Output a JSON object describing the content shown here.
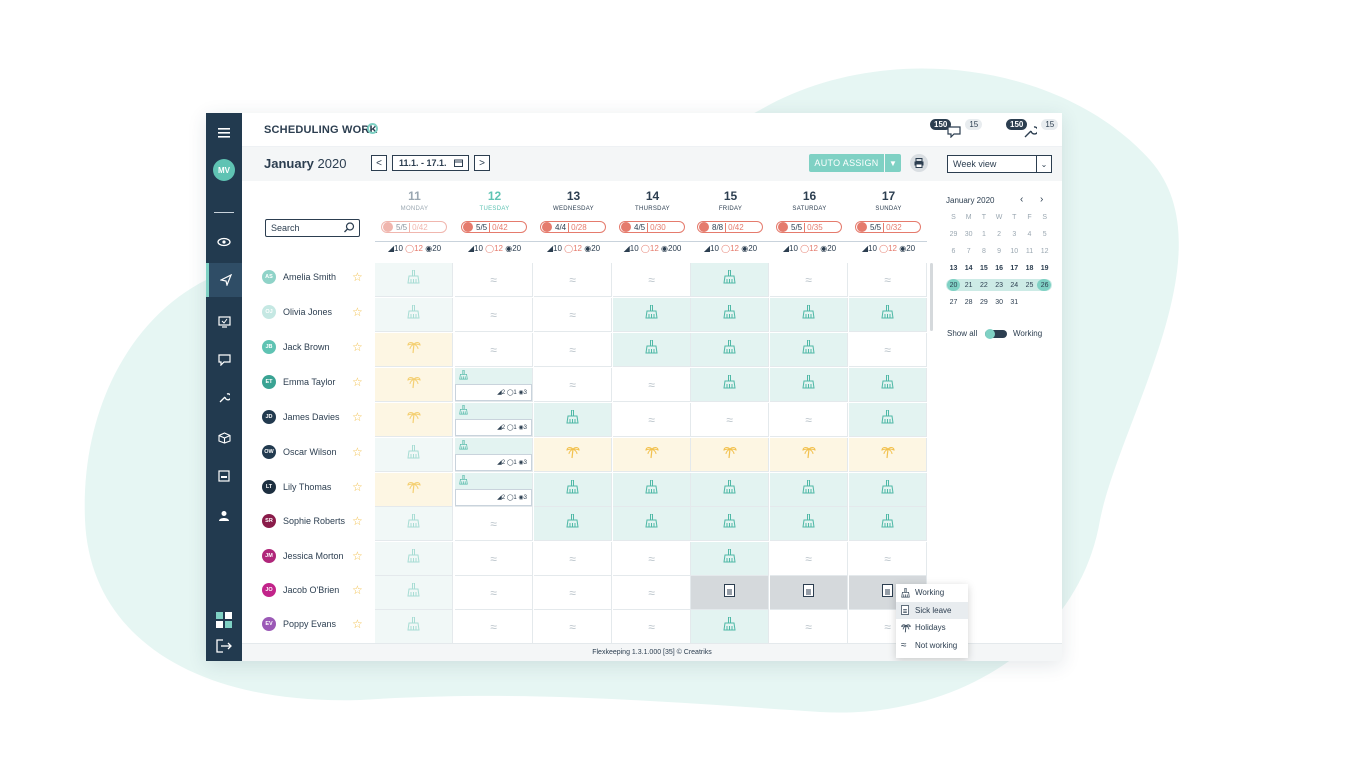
{
  "header": {
    "title": "SCHEDULING WORK",
    "badge1": {
      "dark": "150",
      "light": "15"
    },
    "badge2": {
      "dark": "150",
      "light": "15"
    }
  },
  "sidebar": {
    "avatar": "MV"
  },
  "toolbar": {
    "month": "January",
    "year": "2020",
    "prev": "<",
    "next": ">",
    "range": "11.1. - 17.1.",
    "auto_assign": "AUTO ASSIGN",
    "view": "Week view"
  },
  "search": {
    "placeholder": "Search"
  },
  "days": [
    {
      "num": "11",
      "name": "MONDAY",
      "state": "past",
      "p1": "5/5",
      "p2": "0/42",
      "s1": "10",
      "s2": "12",
      "s3": "20"
    },
    {
      "num": "12",
      "name": "TUESDAY",
      "state": "today",
      "p1": "5/5",
      "p2": "0/42",
      "s1": "10",
      "s2": "12",
      "s3": "20"
    },
    {
      "num": "13",
      "name": "WEDNESDAY",
      "state": "future",
      "p1": "4/4",
      "p2": "0/28",
      "s1": "10",
      "s2": "12",
      "s3": "20"
    },
    {
      "num": "14",
      "name": "THURSDAY",
      "state": "future",
      "p1": "4/5",
      "p2": "0/30",
      "s1": "10",
      "s2": "12",
      "s3": "200"
    },
    {
      "num": "15",
      "name": "FRIDAY",
      "state": "future",
      "p1": "8/8",
      "p2": "0/42",
      "s1": "10",
      "s2": "12",
      "s3": "20"
    },
    {
      "num": "16",
      "name": "SATURDAY",
      "state": "future",
      "p1": "5/5",
      "p2": "0/35",
      "s1": "10",
      "s2": "12",
      "s3": "20"
    },
    {
      "num": "17",
      "name": "SUNDAY",
      "state": "future",
      "p1": "5/5",
      "p2": "0/32",
      "s1": "10",
      "s2": "12",
      "s3": "20"
    }
  ],
  "employees": [
    {
      "initials": "AS",
      "name": "Amelia Smith",
      "color": "#8fd3c8",
      "cells": [
        "workp",
        "off",
        "off",
        "off",
        "work",
        "off",
        "off"
      ]
    },
    {
      "initials": "OJ",
      "name": "Olivia Jones",
      "color": "#c5e8e3",
      "cells": [
        "workp",
        "off",
        "off",
        "work",
        "work",
        "work",
        "work"
      ]
    },
    {
      "initials": "JB",
      "name": "Jack Brown",
      "color": "#5fc3b3",
      "cells": [
        "holp",
        "off",
        "off",
        "work",
        "work",
        "work",
        "off"
      ]
    },
    {
      "initials": "ET",
      "name": "Emma Taylor",
      "color": "#3aa393",
      "cells": [
        "holp",
        "split",
        "off",
        "off",
        "work",
        "work",
        "work"
      ]
    },
    {
      "initials": "JD",
      "name": "James Davies",
      "color": "#223a4f",
      "cells": [
        "holp",
        "split",
        "work",
        "off",
        "off",
        "off",
        "work"
      ]
    },
    {
      "initials": "OW",
      "name": "Oscar Wilson",
      "color": "#223a4f",
      "cells": [
        "workp",
        "split",
        "hol",
        "hol",
        "hol",
        "hol",
        "hol"
      ]
    },
    {
      "initials": "LT",
      "name": "Lily Thomas",
      "color": "#1d2f40",
      "cells": [
        "holp",
        "split",
        "work",
        "work",
        "work",
        "work",
        "work"
      ]
    },
    {
      "initials": "SR",
      "name": "Sophie Roberts",
      "color": "#8a1c4a",
      "cells": [
        "workp",
        "off",
        "work",
        "work",
        "work",
        "work",
        "work"
      ]
    },
    {
      "initials": "JM",
      "name": "Jessica  Morton",
      "color": "#b0267a",
      "cells": [
        "workp",
        "off",
        "off",
        "off",
        "work",
        "off",
        "off"
      ]
    },
    {
      "initials": "JO",
      "name": "Jacob O'Brien",
      "color": "#c2248a",
      "cells": [
        "workp",
        "off",
        "off",
        "off",
        "sick",
        "sick",
        "sick"
      ]
    },
    {
      "initials": "EV",
      "name": "Poppy Evans",
      "color": "#9b59b6",
      "cells": [
        "workp",
        "off",
        "off",
        "off",
        "work",
        "off",
        "off"
      ]
    }
  ],
  "split_stats": {
    "a": "2",
    "b": "1",
    "c": "3"
  },
  "popup": {
    "items": [
      "Working",
      "Sick leave",
      "Holidays",
      "Not working"
    ],
    "selected": "Sick leave"
  },
  "minical": {
    "title": "January 2020",
    "weekdays": [
      "S",
      "M",
      "T",
      "W",
      "T",
      "F",
      "S"
    ],
    "rows": [
      [
        "29",
        "30",
        "1",
        "2",
        "3",
        "4",
        "5"
      ],
      [
        "6",
        "7",
        "8",
        "9",
        "10",
        "11",
        "12"
      ],
      [
        "13",
        "14",
        "15",
        "16",
        "17",
        "18",
        "19"
      ],
      [
        "20",
        "21",
        "22",
        "23",
        "24",
        "25",
        "26"
      ],
      [
        "27",
        "28",
        "29",
        "30",
        "31",
        "",
        ""
      ]
    ]
  },
  "toggle": {
    "left": "Show all",
    "right": "Working"
  },
  "footer": {
    "text": "Flexkeeping 1.3.1.000 [35]  © Creatriks"
  },
  "colors": {
    "accent": "#7fd1c4",
    "sidebar": "#223a4f",
    "alert": "#e57b6d",
    "holiday": "#f2c14e"
  }
}
